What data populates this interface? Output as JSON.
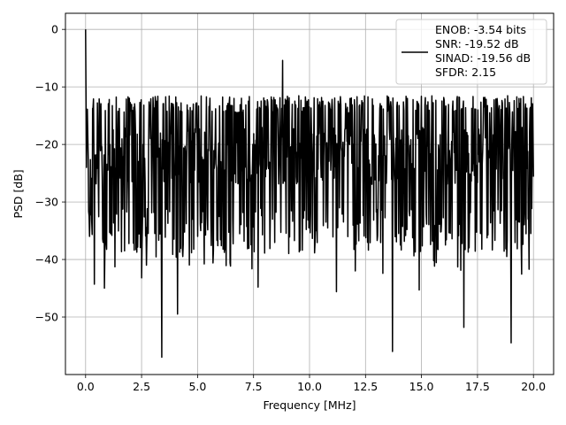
{
  "chart_data": {
    "type": "line",
    "title": "",
    "xlabel": "Frequency [MHz]",
    "ylabel": "PSD [dB]",
    "xlim": [
      -0.9,
      20.9
    ],
    "ylim": [
      -60.0,
      2.8
    ],
    "xticks": [
      0.0,
      2.5,
      5.0,
      7.5,
      10.0,
      12.5,
      15.0,
      17.5,
      20.0
    ],
    "xtick_labels": [
      "0.0",
      "2.5",
      "5.0",
      "7.5",
      "10.0",
      "12.5",
      "15.0",
      "17.5",
      "20.0"
    ],
    "yticks": [
      0,
      -10,
      -20,
      -30,
      -40,
      -50
    ],
    "ytick_labels": [
      "0",
      "−10",
      "−20",
      "−30",
      "−40",
      "−50"
    ],
    "grid": true,
    "legend_position": "top-right",
    "legend_lines": [
      "ENOB: -3.54 bits",
      "SNR: -19.52 dB",
      "SINAD: -19.56 dB",
      "SFDR: 2.15"
    ],
    "series_color": "#000000",
    "grid_color": "#b0b0b0",
    "series": [
      {
        "name": "ENOB: -3.54 bits\nSNR: -19.52 dB\nSINAD: -19.56 dB\nSFDR: 2.15",
        "x_range": [
          0.0,
          20.0
        ],
        "sample_count": 1024,
        "noise_floor_db": -22,
        "upper_envelope_db": -13,
        "lower_envelope_db": -35,
        "peak": {
          "x": 0.0,
          "y": 0.0
        },
        "notable_spikes": [
          {
            "x": 8.8,
            "y": -5.4
          },
          {
            "x": 3.4,
            "y": -57.0
          },
          {
            "x": 13.7,
            "y": -56.0
          },
          {
            "x": 19.0,
            "y": -54.5
          },
          {
            "x": 16.9,
            "y": -51.8
          },
          {
            "x": 4.1,
            "y": -49.5
          },
          {
            "x": 11.2,
            "y": -45.6
          },
          {
            "x": 14.9,
            "y": -45.3
          },
          {
            "x": 0.4,
            "y": -44.3
          },
          {
            "x": 0.85,
            "y": -45.0
          },
          {
            "x": 2.5,
            "y": -43.2
          },
          {
            "x": 7.7,
            "y": -44.8
          },
          {
            "x": 19.8,
            "y": -41.7
          }
        ]
      }
    ]
  }
}
